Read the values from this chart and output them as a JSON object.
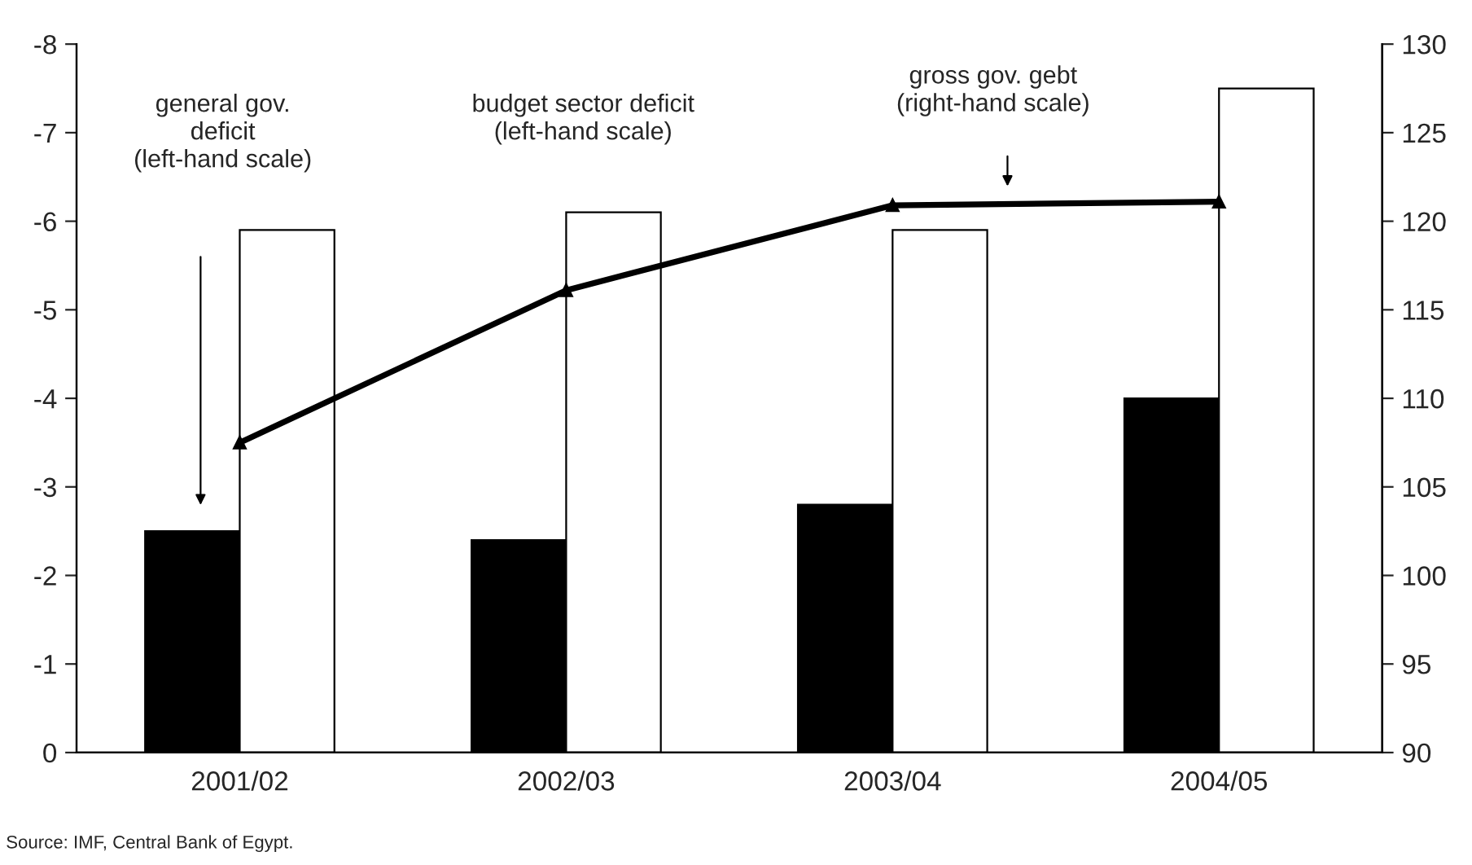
{
  "chart_data": {
    "type": "bar",
    "categories": [
      "2001/02",
      "2002/03",
      "2003/04",
      "2004/05"
    ],
    "series": [
      {
        "color": "#000000",
        "values": [
          -2.5,
          -2.4,
          -2.8,
          -4.0
        ]
      },
      {
        "color": "#ffffff",
        "values": [
          -5.9,
          -6.1,
          -5.9,
          -7.5
        ]
      },
      {
        "type": "line",
        "axis": "y2",
        "color": "#000000",
        "values": [
          107.5,
          116.1,
          120.9,
          121.1
        ]
      }
    ],
    "ylim": [
      0,
      -8
    ],
    "yticks": [
      0,
      -1,
      -2,
      -3,
      -4,
      -5,
      -6,
      -7,
      -8
    ],
    "y2lim": [
      90,
      130
    ],
    "y2ticks": [
      90,
      95,
      100,
      105,
      110,
      115,
      120,
      125,
      130
    ],
    "marker": "triangle",
    "line_style": "solid",
    "grid": false,
    "legend": false,
    "annotations": [
      "general gov.\ndeficit\n(left-hand scale)",
      "budget sector deficit\n(left-hand scale)",
      "gross gov. gebt\n(right-hand scale)",
      "Source: IMF, Central Bank of Egypt."
    ]
  }
}
